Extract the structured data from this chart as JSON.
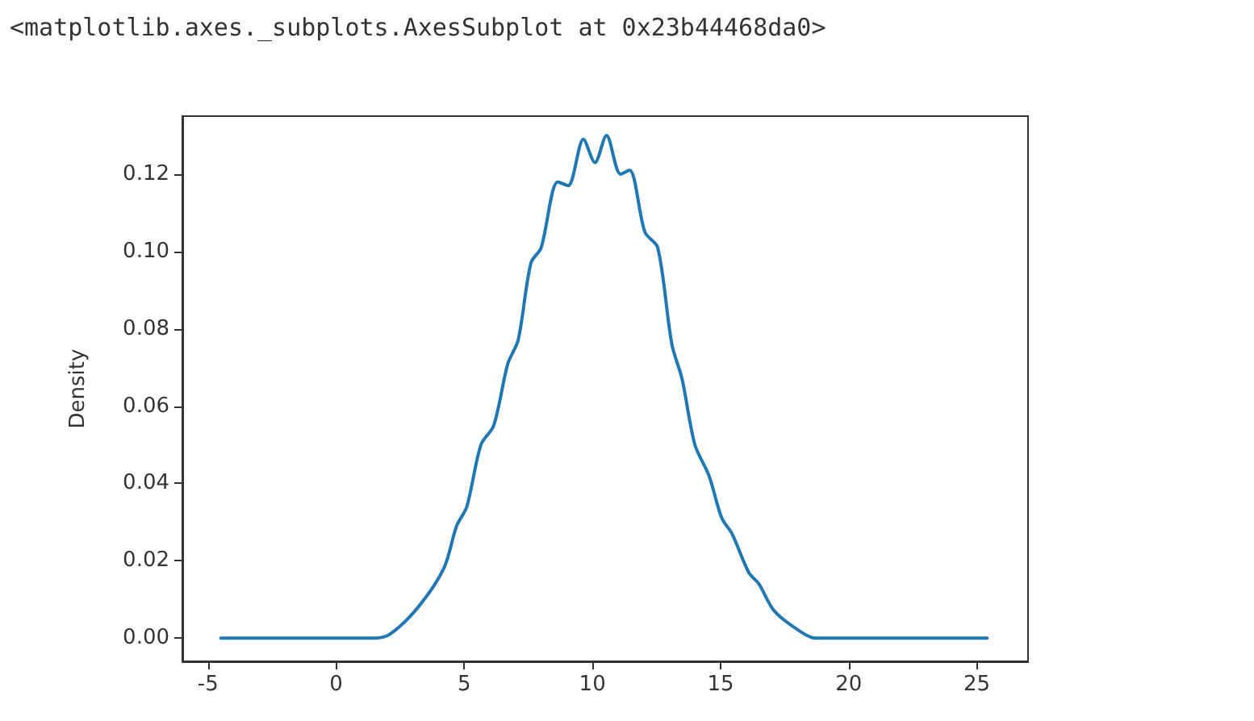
{
  "chart_data": {
    "type": "line",
    "ylabel": "Density",
    "annotations": [
      "<matplotlib.axes._subplots.AxesSubplot at 0x23b44468da0>"
    ],
    "x": [
      -4.5,
      1.5,
      2.1,
      3.2,
      4.2,
      4.7,
      5.1,
      5.65,
      6.15,
      6.7,
      7.1,
      7.6,
      8.0,
      8.65,
      9.05,
      9.65,
      10.1,
      10.55,
      11.1,
      11.45,
      12.05,
      12.55,
      13.1,
      13.5,
      14.0,
      14.55,
      15.05,
      15.45,
      16.1,
      16.5,
      17.1,
      18.05,
      18.7,
      25.4
    ],
    "series": [
      {
        "color": "#1f77b4",
        "values": [
          0,
          0,
          0.001,
          0.008,
          0.018,
          0.029,
          0.034,
          0.05,
          0.055,
          0.071,
          0.077,
          0.097,
          0.101,
          0.118,
          0.117,
          0.129,
          0.123,
          0.13,
          0.12,
          0.121,
          0.105,
          0.101,
          0.076,
          0.067,
          0.05,
          0.042,
          0.031,
          0.027,
          0.017,
          0.014,
          0.007,
          0.002,
          0,
          0
        ]
      }
    ],
    "xlim": [
      -6,
      27
    ],
    "ylim": [
      -0.006,
      0.135
    ],
    "xticks": [
      -5,
      0,
      5,
      10,
      15,
      20,
      25
    ],
    "yticks": [
      {
        "value": 0,
        "label": "0.00"
      },
      {
        "value": 0.02,
        "label": "0.02"
      },
      {
        "value": 0.04,
        "label": "0.04"
      },
      {
        "value": 0.06,
        "label": "0.06"
      },
      {
        "value": 0.08,
        "label": "0.08"
      },
      {
        "value": 0.1,
        "label": "0.10"
      },
      {
        "value": 0.12,
        "label": "0.12"
      }
    ],
    "grid": false,
    "marker": "none",
    "line_style": "solid"
  }
}
